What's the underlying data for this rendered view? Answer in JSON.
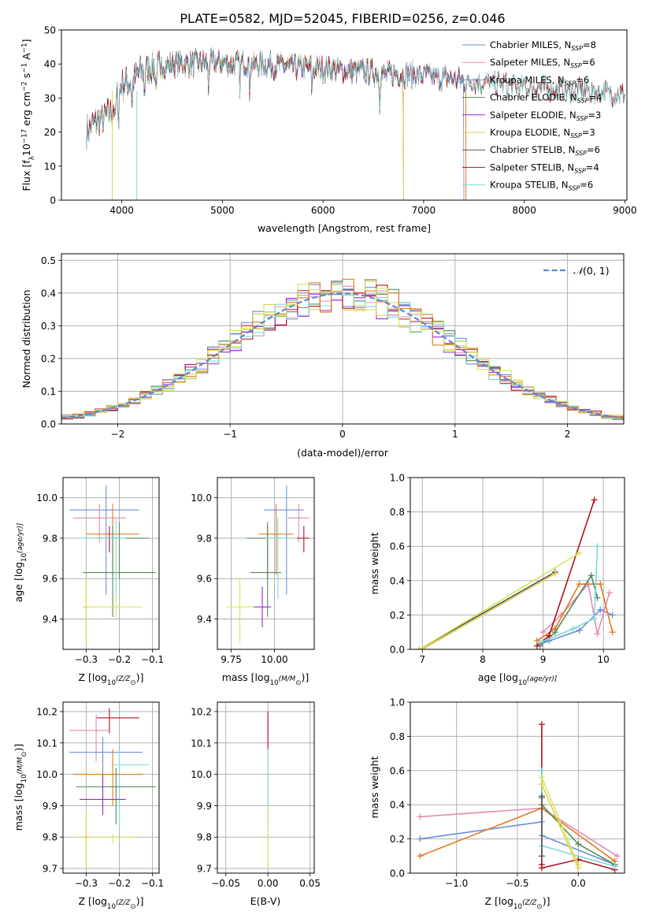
{
  "figure_title": "PLATE=0582, MJD=52045, FIBERID=0256, z=0.046",
  "colors": {
    "c1": "#6a8fd8",
    "c2": "#e48ab4",
    "c3": "#6a8fd8",
    "c4": "#5a8a5a",
    "c5": "#9a2ad0",
    "c6": "#e0d050",
    "c7": "#555555",
    "c8": "#b51020",
    "c9": "#7fd8d8",
    "c10": "#e07b20",
    "c11": "#d0e860",
    "gauss": "#5b86d6",
    "grid": "#b0b0b0"
  },
  "chart_data": [
    {
      "id": "spectrum",
      "type": "line",
      "xlabel": "wavelength [Angstrom, rest frame]",
      "ylabel_parts": [
        "Flux [f",
        "λ",
        "10",
        "−17",
        " erg cm",
        "−2",
        " s",
        "−1",
        " A",
        "−1",
        "]"
      ],
      "xlim": [
        3400,
        9020
      ],
      "ylim": [
        0,
        50
      ],
      "xticks": [
        4000,
        5000,
        6000,
        7000,
        8000,
        9000
      ],
      "yticks": [
        0,
        10,
        20,
        30,
        40,
        50
      ],
      "grid": false,
      "legend": "top-right",
      "continuum_x": [
        3650,
        3700,
        3800,
        3900,
        3950,
        4000,
        4100,
        4200,
        4300,
        4400,
        4500,
        4600,
        4700,
        4800,
        4900,
        5000,
        5100,
        5200,
        5300,
        5400,
        5500,
        5600,
        5700,
        5800,
        5900,
        6000,
        6100,
        6200,
        6300,
        6400,
        6500,
        6600,
        6700,
        6800,
        6900,
        7000,
        7100,
        7200,
        7300,
        7400
      ],
      "continuum_y": [
        20,
        22,
        24,
        26,
        30,
        34,
        35,
        38,
        39,
        39.5,
        40,
        40,
        40,
        40.5,
        40.5,
        40.5,
        40,
        40.5,
        40,
        40,
        39.5,
        39.5,
        39,
        39,
        39,
        38.5,
        38.5,
        38,
        38,
        38,
        37.5,
        37,
        37,
        37,
        37,
        36.5,
        36,
        36,
        35.5,
        35
      ],
      "series": [
        {
          "name_base": "Chabrier MILES, N",
          "name_sub": "SSP",
          "name_tail": "=8",
          "color": "#6a8fd8",
          "xmax": 7400
        },
        {
          "name_base": "Salpeter MILES, N",
          "name_sub": "SSP",
          "name_tail": "=6",
          "color": "#e48ab4",
          "xmax": 7400
        },
        {
          "name_base": "Kroupa MILES, N",
          "name_sub": "SSP",
          "name_tail": "=6",
          "color": "#6a8fd8",
          "xmax": 7400
        },
        {
          "name_base": "Chabrier ELODIE, N",
          "name_sub": "SSP",
          "name_tail": "=4",
          "color": "#5a8a5a",
          "xmax": 6800
        },
        {
          "name_base": "Salpeter ELODIE, N",
          "name_sub": "SSP",
          "name_tail": "=3",
          "color": "#9a2ad0",
          "xmax": 6800
        },
        {
          "name_base": "Kroupa ELODIE, N",
          "name_sub": "SSP",
          "name_tail": "=3",
          "color": "#e0d050",
          "xmax": 6800
        },
        {
          "name_base": "Chabrier STELIB, N",
          "name_sub": "SSP",
          "name_tail": "=6",
          "color": "#555555",
          "xmax": 9000
        },
        {
          "name_base": "Salpeter STELIB, N",
          "name_sub": "SSP",
          "name_tail": "=4",
          "color": "#b51020",
          "xmax": 9000
        },
        {
          "name_base": "Kroupa STELIB, N",
          "name_sub": "SSP",
          "name_tail": "=6",
          "color": "#7fd8d8",
          "xmax": 9000
        }
      ]
    },
    {
      "id": "residuals",
      "type": "histogram",
      "xlabel": "(data-model)/error",
      "ylabel": "Normed distribution",
      "xlim": [
        -2.5,
        2.5
      ],
      "ylim": [
        0,
        0.52
      ],
      "xticks": [
        -2,
        -1,
        0,
        1,
        2
      ],
      "yticks": [
        0.0,
        0.1,
        0.2,
        0.3,
        0.4,
        0.5
      ],
      "grid": true,
      "legend": "top-right",
      "gauss_label_parts": [
        "𝒩",
        "(0, 1)"
      ],
      "bin_width": 0.1,
      "hist_colors": [
        "#6a8fd8",
        "#e48ab4",
        "#5a8a5a",
        "#9a2ad0",
        "#e0d050",
        "#b51020",
        "#7fd8d8",
        "#e07b20",
        "#d0e860"
      ]
    },
    {
      "id": "age-vs-Z",
      "type": "errorbar",
      "xlabel_parts": [
        "Z [log",
        "10",
        "(Z/Z",
        "⊙",
        ")]"
      ],
      "ylabel_parts": [
        "age  [log",
        "10",
        "(age/yr)]"
      ],
      "xlim": [
        -0.37,
        -0.08
      ],
      "ylim": [
        9.25,
        10.1
      ],
      "xticks": [
        -0.3,
        -0.2,
        -0.1
      ],
      "yticks": [
        9.4,
        9.6,
        9.8,
        10.0
      ],
      "grid": true,
      "points": [
        {
          "x": -0.24,
          "xerr": [
            0.11,
            0.1
          ],
          "y": 9.94,
          "yerr": [
            0.42,
            0.12
          ],
          "color": "#6a8fd8"
        },
        {
          "x": -0.26,
          "xerr": [
            0.08,
            0.08
          ],
          "y": 9.9,
          "yerr": [
            0.12,
            0.07
          ],
          "color": "#e48ab4"
        },
        {
          "x": -0.22,
          "xerr": [
            0.08,
            0.08
          ],
          "y": 9.82,
          "yerr": [
            0.2,
            0.15
          ],
          "color": "#e07b20"
        },
        {
          "x": -0.23,
          "xerr": [
            0.03,
            0.03
          ],
          "y": 9.8,
          "yerr": [
            0.07,
            0.06
          ],
          "color": "#b51020"
        },
        {
          "x": -0.2,
          "xerr": [
            0.1,
            0.09
          ],
          "y": 9.8,
          "yerr": [
            0.2,
            0.08
          ],
          "color": "#5a8a5a"
        },
        {
          "x": -0.22,
          "xerr": [
            0.09,
            0.13
          ],
          "y": 9.63,
          "yerr": [
            0.22,
            0.23
          ],
          "color": "#5a8a5a"
        },
        {
          "x": -0.21,
          "xerr": [
            0.11,
            0.03
          ],
          "y": 9.8,
          "yerr": [
            0.3,
            0.1
          ],
          "color": "#7fd8d8"
        },
        {
          "x": -0.21,
          "xerr": [
            0.1,
            0.08
          ],
          "y": 9.46,
          "yerr": [
            0.05,
            0.05
          ],
          "color": "#d0e860"
        },
        {
          "x": -0.3,
          "xerr": [
            0.01,
            0.01
          ],
          "y": 9.46,
          "yerr": [
            0.18,
            0.14
          ],
          "color": "#e0d050"
        }
      ]
    },
    {
      "id": "age-vs-mass",
      "type": "errorbar",
      "xlabel_parts": [
        "mass [log",
        "10",
        "(M/M",
        "⊙",
        ")]"
      ],
      "xlim": [
        9.67,
        10.23
      ],
      "ylim": [
        9.25,
        10.1
      ],
      "xticks": [
        9.75,
        10.0
      ],
      "xtick_labels": [
        "9.75",
        "10.00"
      ],
      "yticks": [
        9.4,
        9.6,
        9.8,
        10.0
      ],
      "grid": true,
      "points": [
        {
          "x": 10.07,
          "xerr": [
            0.13,
            0.1
          ],
          "y": 9.94,
          "yerr": [
            0.42,
            0.12
          ],
          "color": "#6a8fd8"
        },
        {
          "x": 10.14,
          "xerr": [
            0.06,
            0.06
          ],
          "y": 9.9,
          "yerr": [
            0.12,
            0.07
          ],
          "color": "#e48ab4"
        },
        {
          "x": 10.01,
          "xerr": [
            0.1,
            0.1
          ],
          "y": 9.82,
          "yerr": [
            0.2,
            0.15
          ],
          "color": "#e07b20"
        },
        {
          "x": 10.17,
          "xerr": [
            0.04,
            0.03
          ],
          "y": 9.8,
          "yerr": [
            0.07,
            0.06
          ],
          "color": "#b51020"
        },
        {
          "x": 9.96,
          "xerr": [
            0.12,
            0.1
          ],
          "y": 9.8,
          "yerr": [
            0.2,
            0.08
          ],
          "color": "#5a8a5a"
        },
        {
          "x": 9.96,
          "xerr": [
            0.1,
            0.08
          ],
          "y": 9.63,
          "yerr": [
            0.22,
            0.23
          ],
          "color": "#5a8a5a"
        },
        {
          "x": 10.02,
          "xerr": [
            0.07,
            0.05
          ],
          "y": 9.8,
          "yerr": [
            0.3,
            0.1
          ],
          "color": "#7fd8d8"
        },
        {
          "x": 9.93,
          "xerr": [
            0.05,
            0.05
          ],
          "y": 9.46,
          "yerr": [
            0.1,
            0.1
          ],
          "color": "#9a2ad0"
        },
        {
          "x": 9.8,
          "xerr": [
            0.08,
            0.08
          ],
          "y": 9.46,
          "yerr": [
            0.18,
            0.14
          ],
          "color": "#d0e860"
        }
      ]
    },
    {
      "id": "mass-weight-vs-age",
      "type": "line",
      "xlabel_parts": [
        "age  [log",
        "10",
        "(age/yr)]"
      ],
      "ylabel": "mass weight",
      "xlim": [
        6.8,
        10.35
      ],
      "ylim": [
        0,
        1.0
      ],
      "xticks": [
        7,
        8,
        9,
        10
      ],
      "yticks": [
        0.0,
        0.2,
        0.4,
        0.6,
        0.8,
        1.0
      ],
      "grid": true,
      "series": [
        {
          "color": "#6a8fd8",
          "x": [
            8.95,
            9.1,
            9.6,
            9.95,
            10.15
          ],
          "y": [
            0.03,
            0.05,
            0.11,
            0.23,
            0.2
          ]
        },
        {
          "color": "#e48ab4",
          "x": [
            9.0,
            9.3,
            9.75,
            9.9,
            10.1
          ],
          "y": [
            0.1,
            0.2,
            0.38,
            0.09,
            0.33
          ]
        },
        {
          "color": "#e07b20",
          "x": [
            8.9,
            9.2,
            9.6,
            9.95,
            10.15
          ],
          "y": [
            0.05,
            0.12,
            0.38,
            0.38,
            0.1
          ]
        },
        {
          "color": "#5a8a5a",
          "x": [
            8.95,
            9.2,
            9.8,
            9.9
          ],
          "y": [
            0.02,
            0.1,
            0.43,
            0.3
          ]
        },
        {
          "color": "#b51020",
          "x": [
            8.9,
            9.1,
            9.85
          ],
          "y": [
            0.02,
            0.08,
            0.87
          ]
        },
        {
          "color": "#7fd8d8",
          "x": [
            8.95,
            9.5,
            9.85,
            9.9
          ],
          "y": [
            0.04,
            0.12,
            0.18,
            0.6
          ]
        },
        {
          "color": "#555555",
          "x": [
            6.95,
            9.2
          ],
          "y": [
            0.0,
            0.45
          ]
        },
        {
          "color": "#d0e860",
          "x": [
            6.95,
            9.6
          ],
          "y": [
            0.0,
            0.56
          ]
        },
        {
          "color": "#e0d050",
          "x": [
            7.0,
            9.2
          ],
          "y": [
            0.0,
            0.44
          ]
        }
      ]
    },
    {
      "id": "mass-vs-Z",
      "type": "errorbar",
      "xlabel_parts": [
        "Z [log",
        "10",
        "(Z/Z",
        "⊙",
        ")]"
      ],
      "ylabel_parts": [
        "mass [log",
        "10",
        "(M/M",
        "⊙",
        ")]"
      ],
      "xlim": [
        -0.37,
        -0.08
      ],
      "ylim": [
        9.685,
        10.23
      ],
      "xticks": [
        -0.3,
        -0.2,
        -0.1
      ],
      "yticks": [
        9.7,
        9.8,
        9.9,
        10.0,
        10.1,
        10.2
      ],
      "grid": true,
      "points": [
        {
          "x": -0.23,
          "xerr": [
            0.04,
            0.09
          ],
          "y": 10.18,
          "yerr": [
            0.05,
            0.03
          ],
          "color": "#b51020"
        },
        {
          "x": -0.27,
          "xerr": [
            0.08,
            0.04
          ],
          "y": 10.14,
          "yerr": [
            0.1,
            0.05
          ],
          "color": "#e48ab4"
        },
        {
          "x": -0.25,
          "xerr": [
            0.1,
            0.12
          ],
          "y": 10.07,
          "yerr": [
            0.17,
            0.05
          ],
          "color": "#6a8fd8"
        },
        {
          "x": -0.2,
          "xerr": [
            0.02,
            0.09
          ],
          "y": 10.03,
          "yerr": [
            0.2,
            0.05
          ],
          "color": "#7fd8d8"
        },
        {
          "x": -0.22,
          "xerr": [
            0.12,
            0.09
          ],
          "y": 10.0,
          "yerr": [
            0.1,
            0.08
          ],
          "color": "#e07b20"
        },
        {
          "x": -0.21,
          "xerr": [
            0.12,
            0.12
          ],
          "y": 9.96,
          "yerr": [
            0.12,
            0.06
          ],
          "color": "#5a8a5a"
        },
        {
          "x": -0.25,
          "xerr": [
            0.07,
            0.07
          ],
          "y": 9.92,
          "yerr": [
            0.05,
            0.08
          ],
          "color": "#9a2ad0"
        },
        {
          "x": -0.22,
          "xerr": [
            0.11,
            0.07
          ],
          "y": 9.8,
          "yerr": [
            0.02,
            0.01
          ],
          "color": "#d0e860"
        },
        {
          "x": -0.3,
          "xerr": [
            0.01,
            0.01
          ],
          "y": 9.8,
          "yerr": [
            0.1,
            0.08
          ],
          "color": "#e0d050"
        }
      ]
    },
    {
      "id": "mass-vs-EBV",
      "type": "errorbar",
      "xlabel": "E(B-V)",
      "xlim": [
        -0.06,
        0.055
      ],
      "ylim": [
        9.685,
        10.23
      ],
      "xticks": [
        -0.05,
        0.0,
        0.05
      ],
      "xtick_labels": [
        "−0.05",
        "0.00",
        "0.05"
      ],
      "yticks": [
        9.7,
        9.8,
        9.9,
        10.0,
        10.1,
        10.2
      ],
      "grid": true,
      "points": [
        {
          "x": 0.0,
          "xerr": [
            0,
            0
          ],
          "y": 10.1,
          "yerr": [
            0.02,
            0.1
          ],
          "color": "#b51020"
        },
        {
          "x": 0.0,
          "xerr": [
            0,
            0
          ],
          "y": 9.96,
          "yerr": [
            0.13,
            0.12
          ],
          "color": "#7fd8d8"
        },
        {
          "x": 0.0,
          "xerr": [
            0,
            0
          ],
          "y": 9.8,
          "yerr": [
            0.1,
            0.1
          ],
          "color": "#d0e860"
        }
      ]
    },
    {
      "id": "mass-weight-vs-Z",
      "type": "line",
      "xlabel_parts": [
        "Z [log",
        "10",
        "(Z/Z",
        "⊙",
        ")]"
      ],
      "ylabel": "mass weight",
      "xlim": [
        -1.38,
        0.38
      ],
      "ylim": [
        0,
        1.0
      ],
      "xticks": [
        -1.0,
        -0.5,
        0.0
      ],
      "xtick_labels": [
        "−1.0",
        "−0.5",
        "0.0"
      ],
      "yticks": [
        0.0,
        0.2,
        0.4,
        0.6,
        0.8,
        1.0
      ],
      "grid": true,
      "series": [
        {
          "color": "#e48ab4",
          "x": [
            -1.3,
            -0.3,
            0.32
          ],
          "y": [
            0.33,
            0.38,
            0.1
          ]
        },
        {
          "color": "#6a8fd8",
          "x": [
            -1.3,
            -0.3,
            -0.3,
            0.3
          ],
          "y": [
            0.2,
            0.3,
            0.22,
            0.05
          ]
        },
        {
          "color": "#e07b20",
          "x": [
            -1.3,
            -0.3,
            0.3
          ],
          "y": [
            0.1,
            0.38,
            0.07
          ]
        },
        {
          "color": "#b51020",
          "x": [
            -0.3,
            -0.3,
            -0.3,
            0.0,
            0.3
          ],
          "y": [
            0.87,
            0.05,
            0.03,
            0.08,
            0.02
          ]
        },
        {
          "color": "#5a8a5a",
          "x": [
            -0.3,
            -0.3,
            0.0,
            0.3
          ],
          "y": [
            0.44,
            0.4,
            0.17,
            0.05
          ]
        },
        {
          "color": "#7fd8d8",
          "x": [
            -0.3,
            -0.3,
            0.3
          ],
          "y": [
            0.6,
            0.16,
            0.04
          ]
        },
        {
          "color": "#d0e860",
          "x": [
            -0.3,
            0.0
          ],
          "y": [
            0.56,
            0.05
          ]
        },
        {
          "color": "#e0d050",
          "x": [
            -0.3,
            0.0
          ],
          "y": [
            0.52,
            0.03
          ]
        },
        {
          "color": "#555555",
          "x": [
            -0.3,
            -0.3
          ],
          "y": [
            0.45,
            0.1
          ]
        }
      ]
    }
  ]
}
